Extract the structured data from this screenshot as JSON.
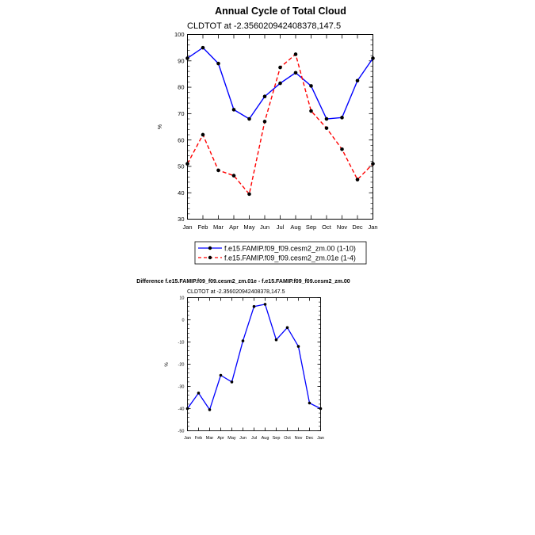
{
  "chart_data": [
    {
      "type": "line",
      "title": "Annual Cycle of Total Cloud",
      "subtitle": "CLDTOT at -2.356020942408378,147.5",
      "xlabel": "",
      "ylabel": "%",
      "ylim": [
        30,
        100
      ],
      "yticks": [
        "30",
        "40",
        "50",
        "60",
        "70",
        "80",
        "90",
        "100"
      ],
      "categories": [
        "Jan",
        "Feb",
        "Mar",
        "Apr",
        "May",
        "Jun",
        "Jul",
        "Aug",
        "Sep",
        "Oct",
        "Nov",
        "Dec",
        "Jan"
      ],
      "legend_position": "bottom",
      "series": [
        {
          "name": "f.e15.FAMIP.f09_f09.cesm2_zm.00 (1-10)",
          "color": "#0000ff",
          "style": "solid",
          "values": [
            91,
            95,
            89,
            71.5,
            68,
            76.5,
            81.5,
            85.5,
            80.5,
            68,
            68.5,
            82.5,
            91
          ]
        },
        {
          "name": "f.e15.FAMIP.f09_f09.cesm2_zm.01e (1-4)",
          "color": "#ff0000",
          "style": "dashed",
          "values": [
            51,
            62,
            48.5,
            46.5,
            39.5,
            67,
            87.5,
            92.5,
            71,
            64.5,
            56.5,
            45,
            51
          ]
        }
      ]
    },
    {
      "type": "line",
      "title": "Difference f.e15.FAMIP.f09_f09.cesm2_zm.01e - f.e15.FAMIP.f09_f09.cesm2_zm.00",
      "subtitle": "CLDTOT at -2.356020942408378,147.5",
      "xlabel": "",
      "ylabel": "%",
      "ylim": [
        -50,
        10
      ],
      "yticks": [
        "-50",
        "-40",
        "-30",
        "-20",
        "-10",
        "0",
        "10"
      ],
      "categories": [
        "Jan",
        "Feb",
        "Mar",
        "Apr",
        "May",
        "Jun",
        "Jul",
        "Aug",
        "Sep",
        "Oct",
        "Nov",
        "Dec",
        "Jan"
      ],
      "series": [
        {
          "name": "difference",
          "color": "#0000ff",
          "style": "solid",
          "values": [
            -40,
            -33,
            -40.5,
            -25,
            -28,
            -9.5,
            6,
            7,
            -9,
            -3.5,
            -12,
            -37.5,
            -40
          ]
        }
      ]
    }
  ]
}
